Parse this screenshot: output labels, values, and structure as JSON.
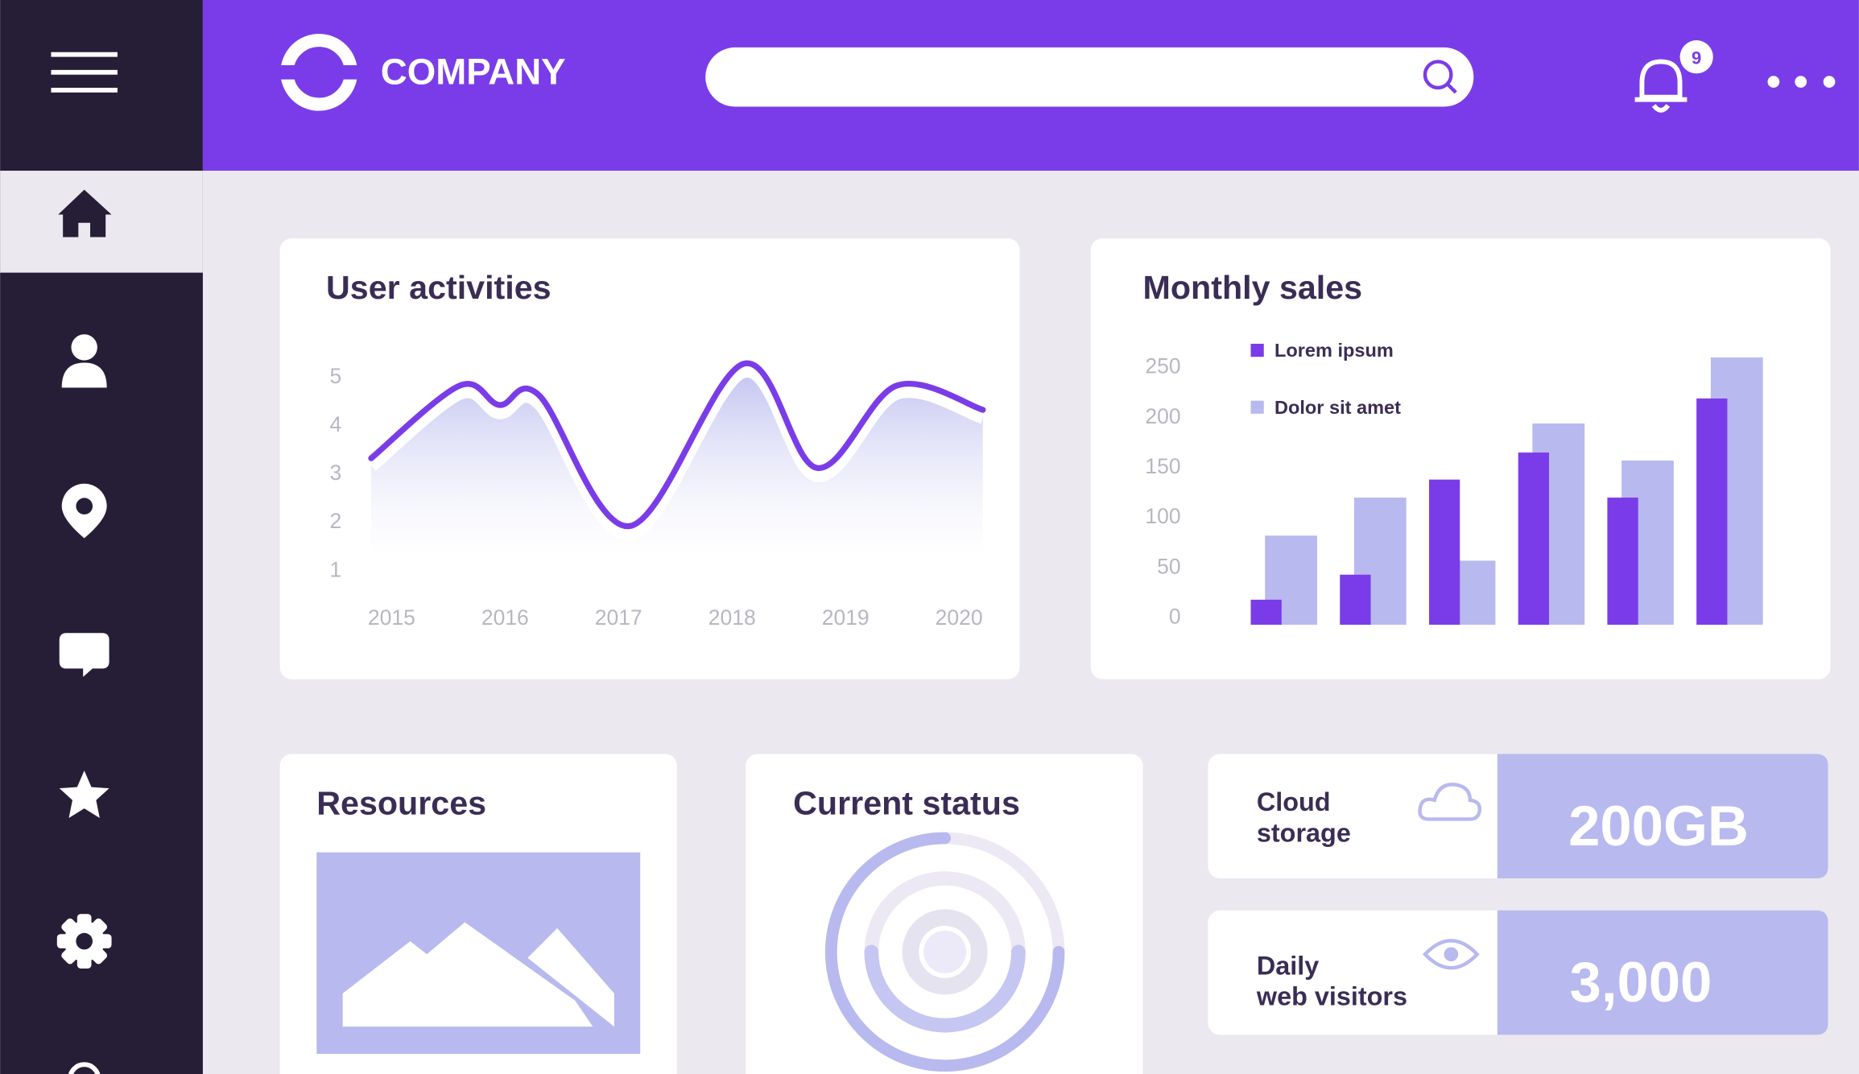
{
  "header": {
    "brand": "COMPANY",
    "notification_count": 9
  },
  "cards": {
    "resources": {
      "title": "Resources"
    },
    "current_status": {
      "title": "Current status"
    }
  },
  "stats": [
    {
      "label": [
        "Cloud",
        "storage"
      ],
      "value": "200GB"
    },
    {
      "label": [
        "Daily",
        "web visitors"
      ],
      "value": "3,000"
    }
  ],
  "chart_data": [
    {
      "type": "area",
      "title": "User activities",
      "color": "#7a3ce8",
      "x": [
        2014.82,
        2015.6,
        2015.95,
        2016.3,
        2017.1,
        2018.1,
        2018.75,
        2019.45,
        2020.21
      ],
      "values": [
        3.3,
        4.8,
        4.4,
        4.6,
        1.9,
        5.25,
        3.1,
        4.8,
        4.3
      ],
      "xlim": [
        2014.82,
        2020.21
      ],
      "xticks": [
        2015,
        2016,
        2017,
        2018,
        2019,
        2020
      ],
      "ylim": [
        0.75,
        5.4
      ],
      "yticks": [
        1,
        2,
        3,
        4,
        5
      ]
    },
    {
      "type": "bar",
      "title": "Monthly sales",
      "categories": [
        null,
        null,
        null,
        null,
        null,
        null
      ],
      "series": [
        {
          "name": "Lorem ipsum",
          "color": "#7a3ce8",
          "values": [
            25,
            50,
            145,
            172,
            127,
            226
          ]
        },
        {
          "name": "Dolor sit amet",
          "color": "#b8b9ee",
          "values": [
            89,
            127,
            64,
            201,
            164,
            267
          ]
        }
      ],
      "ylim": [
        0,
        270
      ],
      "yticks": [
        0,
        50,
        100,
        150,
        200,
        250
      ],
      "legend": "top-left"
    }
  ]
}
